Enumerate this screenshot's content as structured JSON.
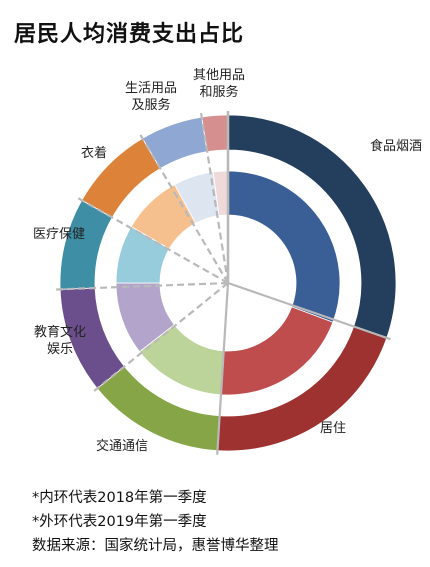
{
  "title": "居民人均消费支出占比",
  "chart_data": {
    "type": "pie",
    "subtype": "double-donut",
    "categories": [
      "食品烟酒",
      "居住",
      "交通通信",
      "教育文化娱乐",
      "医疗保健",
      "衣着",
      "生活用品及服务",
      "其他用品和服务"
    ],
    "label_lines": [
      [
        "食品烟酒"
      ],
      [
        "居住"
      ],
      [
        "交通通信"
      ],
      [
        "教育文化",
        "娱乐"
      ],
      [
        "医疗保健"
      ],
      [
        "衣着"
      ],
      [
        "生活用品",
        "及服务"
      ],
      [
        "其他用品",
        "和服务"
      ]
    ],
    "colors_outer": [
      "#243e5e",
      "#9e3231",
      "#86a547",
      "#6b4f8c",
      "#3e8fa6",
      "#dc8239",
      "#8ea7d3",
      "#d48f8e"
    ],
    "colors_inner": [
      "#3a5f97",
      "#c04d4d",
      "#bcd49a",
      "#b3a4cb",
      "#97ccdc",
      "#f6c08e",
      "#dde5f1",
      "#efd9d9"
    ],
    "series": [
      {
        "name": "*内环代表2018年第一季度",
        "ring": "inner",
        "values": [
          30.7,
          20.3,
          13.5,
          10.5,
          8.4,
          8.7,
          5.8,
          2.1
        ]
      },
      {
        "name": "*外环代表2019年第一季度",
        "ring": "outer",
        "values": [
          30.3,
          20.7,
          13.2,
          10.2,
          8.8,
          8.3,
          6.0,
          2.5
        ]
      }
    ]
  },
  "notes": {
    "inner": "*内环代表2018年第一季度",
    "outer": "*外环代表2019年第一季度",
    "source": "数据来源：国家统计局，惠誉博华整理"
  }
}
